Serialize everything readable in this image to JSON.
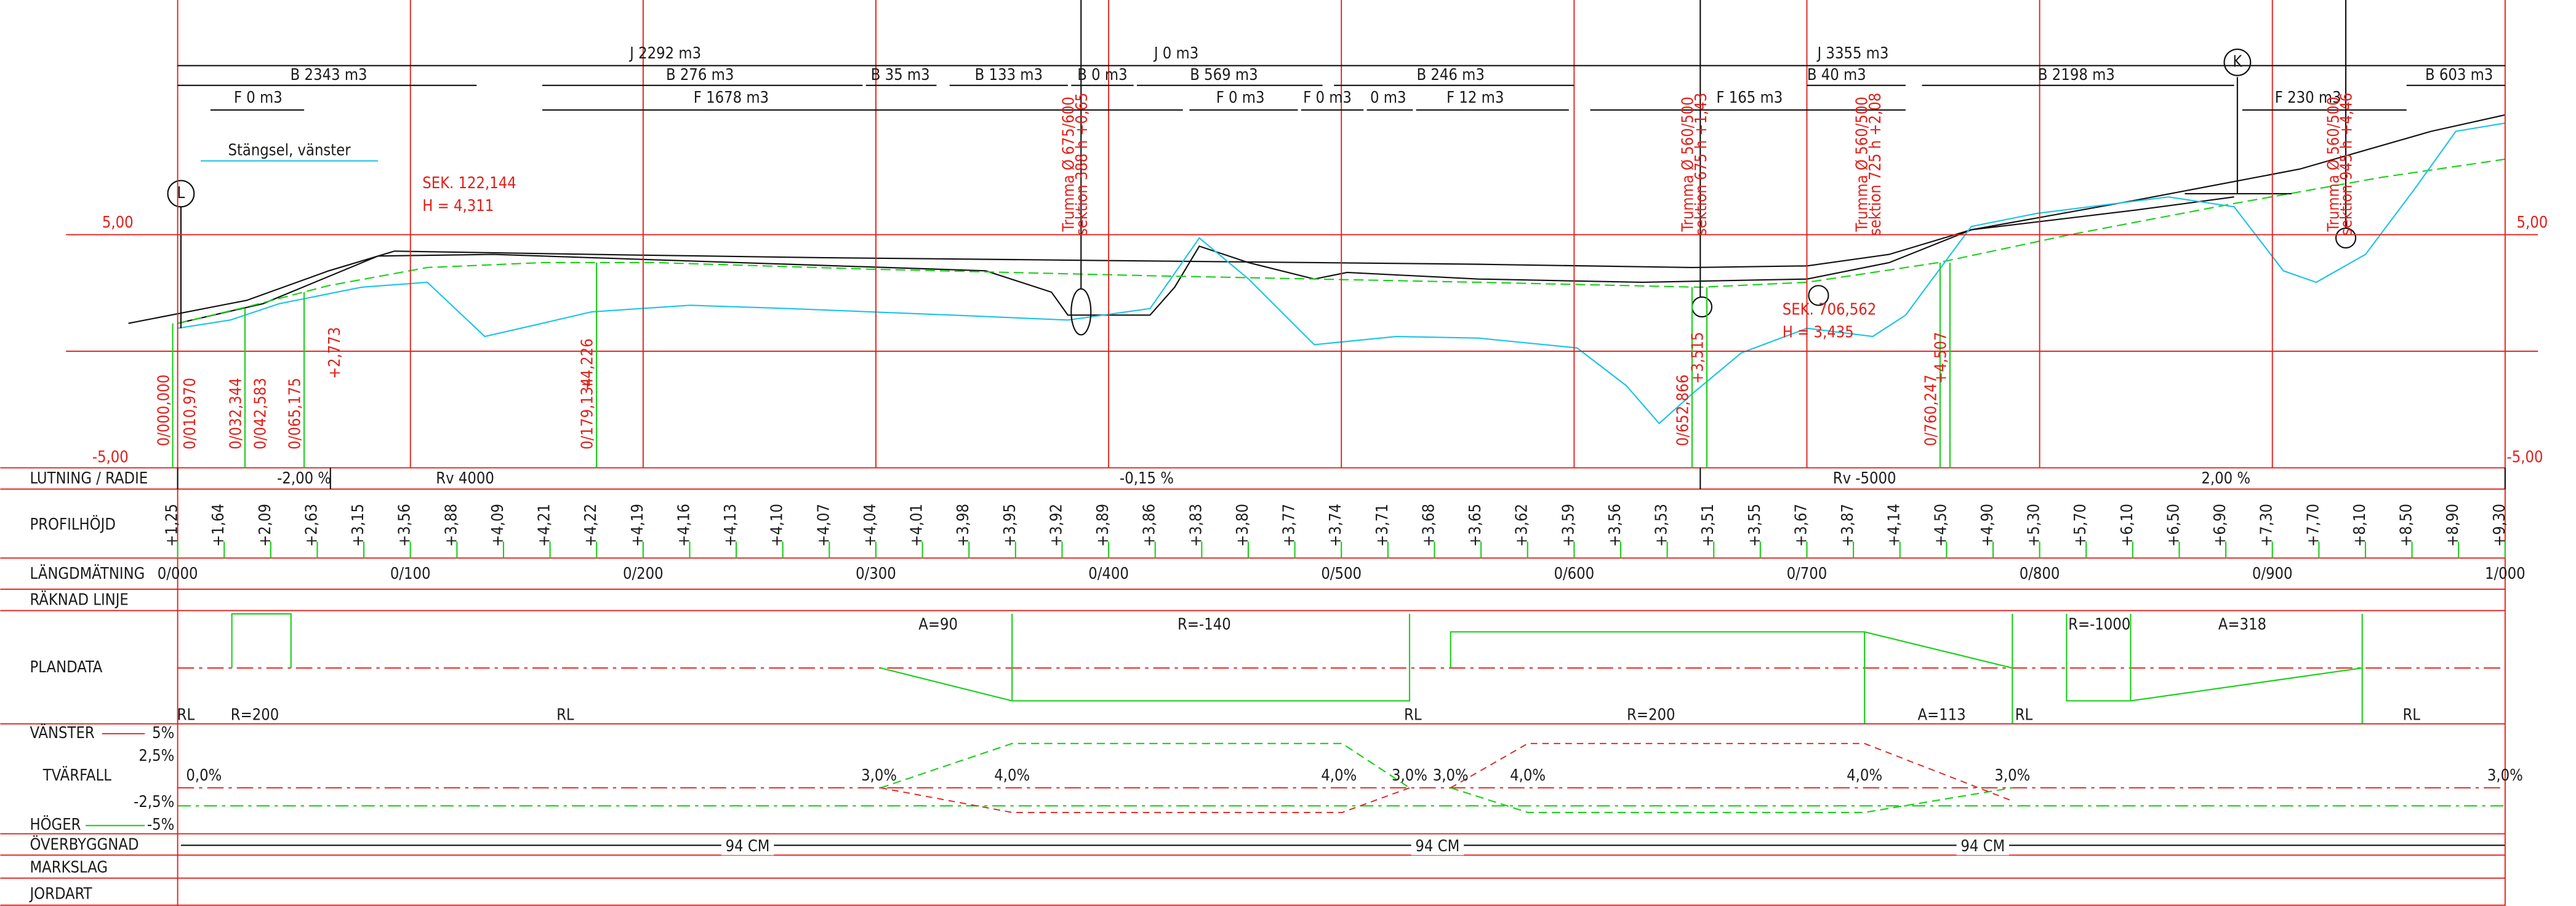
{
  "volumes": {
    "j": [
      "J 2292 m3",
      "J 0 m3",
      "J 3355 m3"
    ],
    "b": [
      "B 2343 m3",
      "B 276 m3",
      "B 35 m3",
      "B 133 m3",
      "B 0 m3",
      "B 569 m3",
      "B 246 m3",
      "B 40 m3",
      "B 2198 m3",
      "B 603 m3"
    ],
    "f": [
      "F 0 m3",
      "F 1678 m3",
      "F 0 m3",
      "F 0 m3",
      "0 m3",
      "F 12 m3",
      "F 165 m3",
      "F 230 m3"
    ]
  },
  "fence_label": "Stängsel, vänster",
  "markers": [
    "L",
    "K"
  ],
  "sections": [
    {
      "sek": "SEK. 122,144",
      "h": "H = 4,311"
    },
    {
      "sek": "SEK. 706,562",
      "h": "H = 3,435"
    }
  ],
  "level_labels": {
    "top": "5,00",
    "bottom": "-5,00"
  },
  "culverts": [
    {
      "pipe": "Trumma Ø 675/600",
      "section": "sektion 388 h +0,65"
    },
    {
      "pipe": "Trumma Ø 560/500",
      "section": "sektion 675 h +1,43"
    },
    {
      "pipe": "Trumma Ø 560/500",
      "section": "sektion 725 h +2,08"
    },
    {
      "pipe": "Trumma Ø 560/500",
      "section": "sektion 945 h +4,46"
    }
  ],
  "point_labels": [
    "0/000,000",
    "0/010,970",
    "0/032,344",
    "0/042,583",
    "0/065,175",
    "+2,773",
    "0/179,134",
    "+4,226",
    "0/652,866",
    "+3,515",
    "0/760,247",
    "+4,507"
  ],
  "rows": [
    "LUTNING / RADIE",
    "PROFILHÖJD",
    "LÄNGDMÄTNING",
    "RÄKNAD LINJE",
    "PLANDATA",
    "VÄNSTER",
    "TVÄRFALL",
    "HÖGER",
    "ÖVERBYGGNAD",
    "MARKSLAG",
    "JORDART"
  ],
  "crossfall_scale": [
    "5%",
    "2,5%",
    "-2,5%",
    "-5%"
  ],
  "gradient": [
    "-2,00 %",
    "Rv 4000",
    "-0,15 %",
    "Rv -5000",
    "2,00 %"
  ],
  "profile_heights": [
    "+1,25",
    "+1,64",
    "+2,09",
    "+2,63",
    "+3,15",
    "+3,56",
    "+3,88",
    "+4,09",
    "+4,21",
    "+4,22",
    "+4,19",
    "+4,16",
    "+4,13",
    "+4,10",
    "+4,07",
    "+4,04",
    "+4,01",
    "+3,98",
    "+3,95",
    "+3,92",
    "+3,89",
    "+3,86",
    "+3,83",
    "+3,80",
    "+3,77",
    "+3,74",
    "+3,71",
    "+3,68",
    "+3,65",
    "+3,62",
    "+3,59",
    "+3,56",
    "+3,53",
    "+3,51",
    "+3,55",
    "+3,67",
    "+3,87",
    "+4,14",
    "+4,50",
    "+4,90",
    "+5,30",
    "+5,70",
    "+6,10",
    "+6,50",
    "+6,90",
    "+7,30",
    "+7,70",
    "+8,10",
    "+8,50",
    "+8,90",
    "+9,30"
  ],
  "chainage": [
    "0/000",
    "0/100",
    "0/200",
    "0/300",
    "0/400",
    "0/500",
    "0/600",
    "0/700",
    "0/800",
    "0/900",
    "1/000"
  ],
  "plan_data": [
    "RL",
    "R=200",
    "RL",
    "A=90",
    "R=-140",
    "RL",
    "R=200",
    "A=113",
    "RL",
    "R=-1000",
    "A=318",
    "RL"
  ],
  "crossfall": [
    "0,0%",
    "3,0%",
    "4,0%",
    "4,0%",
    "3,0%",
    "3,0%",
    "4,0%",
    "4,0%",
    "3,0%",
    "3,0%"
  ],
  "pavement": [
    "94 CM",
    "94 CM",
    "94 CM"
  ]
}
